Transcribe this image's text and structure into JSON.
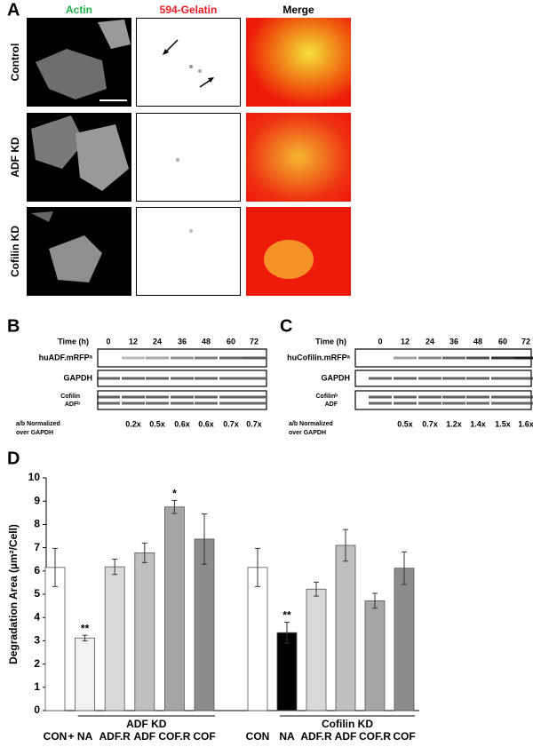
{
  "panel_a": {
    "letter": "A",
    "columns": [
      "Actin",
      "594-Gelatin",
      "Merge"
    ],
    "rows": [
      "Control",
      "ADF KD",
      "Cofilin KD"
    ]
  },
  "panel_b": {
    "letter": "B",
    "time_label": "Time (h)",
    "times": [
      "0",
      "12",
      "24",
      "36",
      "48",
      "60",
      "72"
    ],
    "blot_labels": [
      "huADF.mRFPᵃ",
      "GAPDH"
    ],
    "third_blot_label": [
      "Cofilin",
      "ADFᵇ"
    ],
    "ratio_label": [
      "a/b Normalized",
      "over GAPDH"
    ],
    "ratios": [
      "0.2x",
      "0.5x",
      "0.6x",
      "0.6x",
      "0.7x",
      "0.7x"
    ]
  },
  "panel_c": {
    "letter": "C",
    "time_label": "Time (h)",
    "times": [
      "0",
      "12",
      "24",
      "36",
      "48",
      "60",
      "72"
    ],
    "blot_labels": [
      "huCofilin.mRFPᵃ",
      "GAPDH"
    ],
    "third_blot_label": [
      "Cofilinᵇ",
      "ADF"
    ],
    "ratio_label": [
      "a/b Normalized",
      "over GAPDH"
    ],
    "ratios": [
      "0.5x",
      "0.7x",
      "1.2x",
      "1.4x",
      "1.5x",
      "1.6x"
    ]
  },
  "chart_data": {
    "type": "bar",
    "letter": "D",
    "ylabel": "Degradation Area (µm²/Cell)",
    "ylim": [
      0,
      10
    ],
    "yticks": [
      0,
      1,
      2,
      3,
      4,
      5,
      6,
      7,
      8,
      9,
      10
    ],
    "categories": [
      "CON",
      "NA",
      "ADF.R",
      "ADF",
      "COF.R",
      "COF",
      "CON",
      "NA",
      "ADF.R",
      "ADF",
      "COF.R",
      "COF"
    ],
    "values": [
      6.15,
      3.12,
      6.18,
      6.78,
      8.75,
      7.37,
      6.15,
      3.35,
      5.22,
      7.1,
      4.72,
      6.12
    ],
    "errors": [
      0.82,
      0.12,
      0.33,
      0.42,
      0.28,
      1.08,
      0.82,
      0.45,
      0.3,
      0.68,
      0.32,
      0.7
    ],
    "colors": [
      "#ffffff",
      "#f2f2f2",
      "#d9d9d9",
      "#bfbfbf",
      "#a6a6a6",
      "#8c8c8c",
      "#ffffff",
      "#000000",
      "#d9d9d9",
      "#bfbfbf",
      "#a6a6a6",
      "#8c8c8c"
    ],
    "significance": [
      null,
      "**",
      null,
      null,
      "*",
      null,
      null,
      "**",
      null,
      null,
      null,
      null
    ],
    "control_marker": "+",
    "groups": [
      "ADF KD",
      "Cofilin KD"
    ]
  }
}
